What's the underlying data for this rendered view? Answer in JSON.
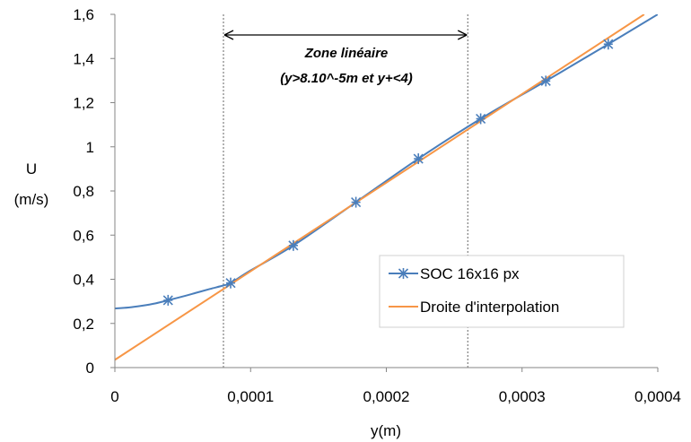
{
  "chart_data": {
    "type": "line",
    "title": "",
    "xlabel": "y(m)",
    "ylabel_lines": [
      "U",
      "(m/s)"
    ],
    "xlim": [
      0,
      0.0004
    ],
    "ylim": [
      0,
      1.6
    ],
    "x_ticks": [
      0,
      0.0001,
      0.0002,
      0.0003,
      0.0004
    ],
    "x_tick_labels": [
      "0",
      "0,0001",
      "0,0002",
      "0,0003",
      "0,0004"
    ],
    "y_ticks": [
      0,
      0.2,
      0.4,
      0.6,
      0.8,
      1,
      1.2,
      1.4,
      1.6
    ],
    "y_tick_labels": [
      "0",
      "0,2",
      "0,4",
      "0,6",
      "0,8",
      "1",
      "1,2",
      "1,4",
      "1,6"
    ],
    "grid": false,
    "legend_position": "bottom-right",
    "series": [
      {
        "name": "SOC 16x16 px",
        "color": "#4a7ebb",
        "marker": "asterisk",
        "markers": {
          "x": [
            3.92e-05,
            8.53e-05,
            0.0001315,
            0.0001776,
            0.0002236,
            0.0002695,
            0.0003175,
            0.0003635
          ],
          "y": [
            0.305,
            0.383,
            0.553,
            0.749,
            0.946,
            1.127,
            1.298,
            1.465
          ]
        },
        "curve": {
          "x": [
            0,
            1e-05,
            2e-05,
            3e-05,
            3.92e-05,
            5e-05,
            6e-05,
            7e-05,
            8e-05,
            8.53e-05,
            0.0001,
            0.0001315,
            0.0001776,
            0.0002236,
            0.0002695,
            0.0003175,
            0.0003635,
            0.0004
          ],
          "y": [
            0.268,
            0.272,
            0.28,
            0.291,
            0.305,
            0.322,
            0.339,
            0.356,
            0.372,
            0.383,
            0.44,
            0.553,
            0.749,
            0.946,
            1.127,
            1.298,
            1.465,
            1.6
          ]
        }
      },
      {
        "name": "Droite d'interpolation",
        "color": "#f79646",
        "line": {
          "x": [
            0,
            0.00039
          ],
          "y": [
            0.035,
            1.6
          ]
        }
      }
    ],
    "annotations": {
      "zone_lines_x": [
        8e-05,
        0.00026
      ],
      "zone_label_line1": "Zone linéaire",
      "zone_label_line2": "(y>8.10^-5m et y+<4)"
    }
  }
}
